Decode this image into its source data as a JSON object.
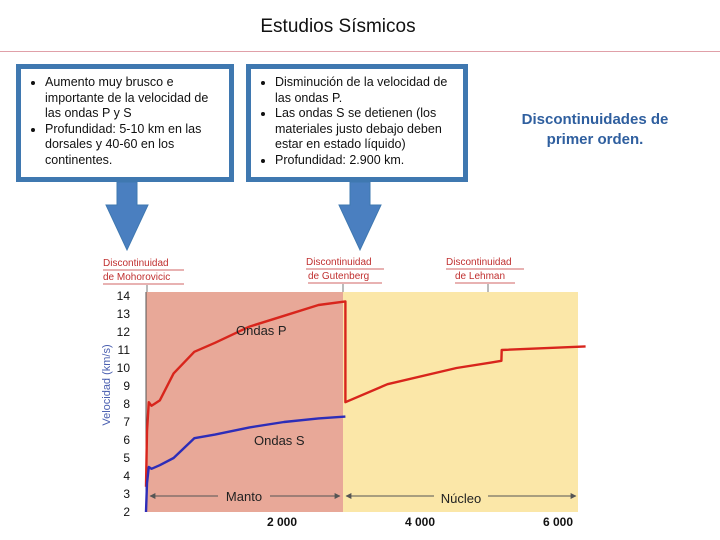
{
  "title": "Estudios Sísmicos",
  "box_left": {
    "bullets": [
      "Aumento muy brusco e importante de la velocidad de las ondas P y S",
      "Profundidad: 5-10 km en las dorsales y 40-60 en los continentes."
    ]
  },
  "box_middle": {
    "bullets": [
      "Disminución de la velocidad de las ondas P.",
      "Las ondas S se detienen (los materiales justo debajo deben estar en estado líquido)",
      "Profundidad:  2.900 km."
    ]
  },
  "side_note": "Discontinuidades de primer orden.",
  "colors": {
    "arrow": "#4a7fc0",
    "mantle": "#e8a898",
    "core": "#fbe7a8",
    "onda_p": "#d8251c",
    "onda_s": "#2d2db8",
    "label_red": "#c03030"
  },
  "chart": {
    "disc_moho": [
      "Discontinuidad",
      "de Mohorovicic"
    ],
    "disc_gutenberg": [
      "Discontinuidad",
      "de Gutenberg"
    ],
    "disc_lehman": [
      "Discontinuidad",
      "de Lehman"
    ],
    "ylabel": "Velocidad (km/s)",
    "label_p": "Ondas P",
    "label_s": "Ondas S",
    "label_manto": "Manto",
    "label_nucleo": "Núcleo",
    "y_ticks": [
      "14",
      "13",
      "12",
      "11",
      "10",
      "9",
      "8",
      "7",
      "6",
      "5",
      "4",
      "3",
      "2"
    ],
    "x_ticks": [
      "2 000",
      "4 000",
      "6 000"
    ]
  },
  "chart_data": {
    "type": "line",
    "xlabel": "",
    "ylabel": "Velocidad (km/s)",
    "ylim": [
      2,
      14
    ],
    "xlim": [
      0,
      6371
    ],
    "x_ticks": [
      2000,
      4000,
      6000
    ],
    "series": [
      {
        "name": "Ondas P",
        "points": [
          [
            0,
            3.4
          ],
          [
            15,
            6.5
          ],
          [
            40,
            8.1
          ],
          [
            80,
            7.9
          ],
          [
            120,
            8.0
          ],
          [
            200,
            8.2
          ],
          [
            400,
            9.7
          ],
          [
            700,
            10.9
          ],
          [
            1000,
            11.4
          ],
          [
            1500,
            12.3
          ],
          [
            2000,
            12.9
          ],
          [
            2500,
            13.5
          ],
          [
            2890,
            13.7
          ],
          [
            2890,
            8.1
          ],
          [
            3500,
            9.1
          ],
          [
            4500,
            10.0
          ],
          [
            5000,
            10.3
          ],
          [
            5150,
            10.4
          ],
          [
            5155,
            11.0
          ],
          [
            6371,
            11.2
          ]
        ]
      },
      {
        "name": "Ondas S",
        "points": [
          [
            0,
            2.0
          ],
          [
            15,
            3.6
          ],
          [
            40,
            4.5
          ],
          [
            80,
            4.4
          ],
          [
            200,
            4.6
          ],
          [
            400,
            5.0
          ],
          [
            700,
            6.1
          ],
          [
            1000,
            6.3
          ],
          [
            1500,
            6.7
          ],
          [
            2000,
            7.0
          ],
          [
            2500,
            7.2
          ],
          [
            2890,
            7.3
          ]
        ]
      }
    ],
    "regions": [
      {
        "name": "Manto",
        "x": [
          0,
          2890
        ]
      },
      {
        "name": "Núcleo",
        "x": [
          2890,
          6371
        ]
      }
    ],
    "annotations": [
      "Discontinuidad de Mohorovicic",
      "Discontinuidad de Gutenberg",
      "Discontinuidad de Lehman"
    ]
  }
}
